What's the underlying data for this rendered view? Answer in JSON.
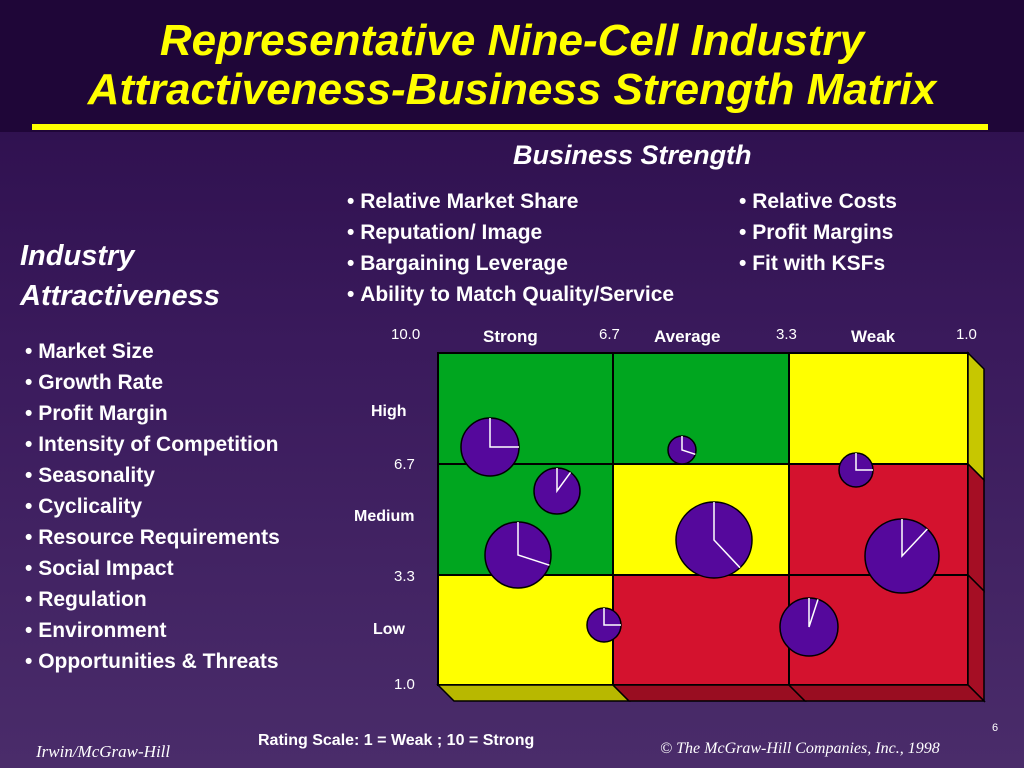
{
  "title": {
    "line1": "Representative  Nine-Cell  Industry",
    "line2": "Attractiveness-Business  Strength  Matrix"
  },
  "business_strength": {
    "heading": "Business Strength",
    "factors_left": [
      "Relative Market Share",
      "Reputation/ Image",
      "Bargaining Leverage",
      "Ability to Match Quality/Service"
    ],
    "factors_right": [
      "Relative Costs",
      "Profit  Margins",
      "Fit with KSFs"
    ]
  },
  "industry_attractiveness": {
    "heading_line1": "Industry",
    "heading_line2": "Attractiveness",
    "factors": [
      "Market Size",
      "Growth Rate",
      "Profit Margin",
      "Intensity of  Competition",
      "Seasonality",
      "Cyclicality",
      "Resource Requirements",
      "Social Impact",
      "Regulation",
      "Environment",
      "Opportunities & Threats"
    ]
  },
  "matrix": {
    "column_labels": [
      "Strong",
      "Average",
      "Weak"
    ],
    "column_scale": [
      "10.0",
      "6.7",
      "3.3",
      "1.0"
    ],
    "row_labels": [
      "High",
      "Medium",
      "Low"
    ],
    "row_scale": [
      "6.7",
      "3.3",
      "1.0"
    ],
    "cells": [
      [
        "green",
        "green",
        "yellow"
      ],
      [
        "green",
        "yellow",
        "red"
      ],
      [
        "yellow",
        "red",
        "red"
      ]
    ],
    "colors": {
      "green": "#00a61f",
      "yellow": "#ffff00",
      "red": "#d4122e",
      "circle": "#55089c"
    }
  },
  "rating_scale": "Rating Scale:  1 = Weak ; 10 = Strong",
  "page_number": "6",
  "footer_left": "Irwin/McGraw-Hill",
  "footer_right": "© The McGraw-Hill Companies, Inc., 1998"
}
